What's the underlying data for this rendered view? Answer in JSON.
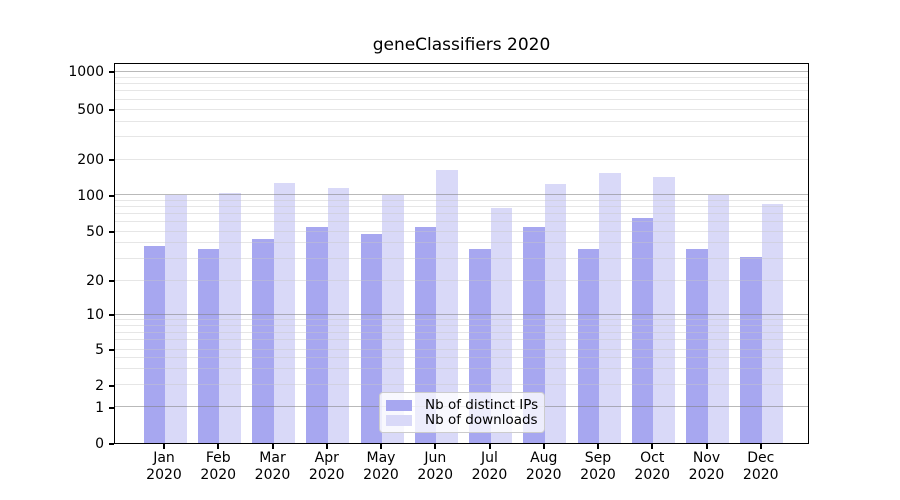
{
  "chart_data": {
    "type": "bar",
    "title": "geneClassifiers 2020",
    "categories": [
      {
        "month": "Jan",
        "year": "2020"
      },
      {
        "month": "Feb",
        "year": "2020"
      },
      {
        "month": "Mar",
        "year": "2020"
      },
      {
        "month": "Apr",
        "year": "2020"
      },
      {
        "month": "May",
        "year": "2020"
      },
      {
        "month": "Jun",
        "year": "2020"
      },
      {
        "month": "Jul",
        "year": "2020"
      },
      {
        "month": "Aug",
        "year": "2020"
      },
      {
        "month": "Sep",
        "year": "2020"
      },
      {
        "month": "Oct",
        "year": "2020"
      },
      {
        "month": "Nov",
        "year": "2020"
      },
      {
        "month": "Dec",
        "year": "2020"
      }
    ],
    "series": [
      {
        "name": "Nb of distinct IPs",
        "color": "#a7a7f0",
        "values": [
          38,
          36,
          43,
          54,
          47,
          54,
          36,
          54,
          36,
          64,
          36,
          31
        ]
      },
      {
        "name": "Nb of downloads",
        "color": "#d9d9f8",
        "values": [
          100,
          103,
          126,
          114,
          100,
          161,
          78,
          123,
          152,
          141,
          100,
          83
        ]
      }
    ],
    "yticks": [
      0,
      1,
      2,
      5,
      10,
      20,
      50,
      100,
      200,
      500,
      1000
    ],
    "yscale": "log-like (symlog, 0 shown at baseline)",
    "ylim": [
      0,
      1150
    ],
    "xlabel": "",
    "ylabel": "",
    "grid": "both (light minor lines, darker lines at powers of 10), drawn over bars",
    "legend_position": "bottom-center inside plot",
    "bar_layout": "paired bars per month: distinct IPs (dark) left, downloads (light) right"
  }
}
